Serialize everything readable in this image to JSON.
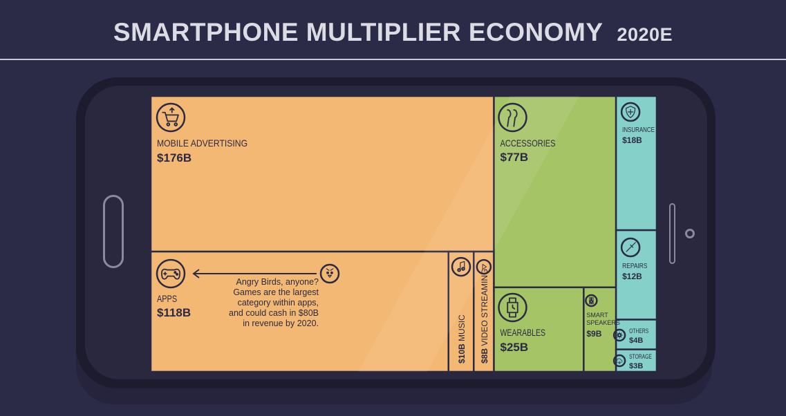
{
  "header": {
    "title": "SMARTPHONE MULTIPLIER ECONOMY",
    "year": "2020E"
  },
  "colors": {
    "background": "#2b2a47",
    "orange": "#f3b873",
    "green": "#a5c466",
    "teal": "#85d0c8",
    "ink": "#2b2a44"
  },
  "chart_data": {
    "type": "treemap",
    "unit": "$B",
    "items": [
      {
        "name": "MOBILE ADVERTISING",
        "value": 176,
        "label": "$176B",
        "icon": "shopping-cart-icon",
        "color": "#f3b873"
      },
      {
        "name": "APPS",
        "value": 118,
        "label": "$118B",
        "icon": "gamepad-icon",
        "color": "#f3b873"
      },
      {
        "name": "MUSIC",
        "value": 10,
        "label": "$10B",
        "icon": "music-note-icon",
        "color": "#f3b873"
      },
      {
        "name": "VIDEO STREAMING",
        "value": 8,
        "label": "$8B",
        "icon": "play-icon",
        "color": "#f3b873"
      },
      {
        "name": "ACCESSORIES",
        "value": 77,
        "label": "$77B",
        "icon": "earbuds-icon",
        "color": "#a5c466"
      },
      {
        "name": "WEARABLES",
        "value": 25,
        "label": "$25B",
        "icon": "smartwatch-icon",
        "color": "#a5c466"
      },
      {
        "name": "SMART SPEAKERS",
        "value": 9,
        "label": "$9B",
        "icon": "speaker-icon",
        "color": "#a5c466"
      },
      {
        "name": "INSURANCE",
        "value": 18,
        "label": "$18B",
        "icon": "shield-icon",
        "color": "#85d0c8"
      },
      {
        "name": "REPAIRS",
        "value": 12,
        "label": "$12B",
        "icon": "screwdriver-icon",
        "color": "#85d0c8"
      },
      {
        "name": "OTHERS",
        "value": 4,
        "label": "$4B",
        "icon": "gear-icon",
        "color": "#85d0c8"
      },
      {
        "name": "STORAGE",
        "value": 3,
        "label": "$3B",
        "icon": "cloud-icon",
        "color": "#85d0c8"
      }
    ],
    "annotation": {
      "lines": [
        "Angry Birds, anyone?",
        "Games are the largest",
        "category within apps,",
        "and could cash in $80B",
        "in revenue by 2020."
      ],
      "icon": "angry-bird-icon"
    }
  }
}
